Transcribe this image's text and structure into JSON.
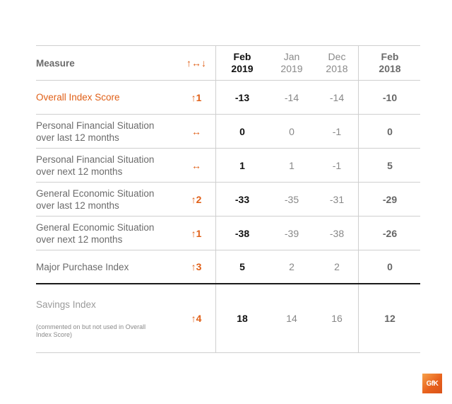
{
  "header": {
    "measure": "Measure",
    "change_symbol": "↑↔↓",
    "feb2019": [
      "Feb",
      "2019"
    ],
    "jan2019": [
      "Jan",
      "2019"
    ],
    "dec2018": [
      "Dec",
      "2018"
    ],
    "feb2018": [
      "Feb",
      "2018"
    ]
  },
  "rows": [
    {
      "measure": [
        "Overall Index Score"
      ],
      "change": "↑1",
      "feb2019": "-13",
      "jan2019": "-14",
      "dec2018": "-14",
      "feb2018": "-10"
    },
    {
      "measure": [
        "Personal Financial Situation",
        "over last 12 months"
      ],
      "change": "↔",
      "feb2019": "0",
      "jan2019": "0",
      "dec2018": "-1",
      "feb2018": "0"
    },
    {
      "measure": [
        "Personal Financial Situation",
        "over next 12 months"
      ],
      "change": "↔",
      "feb2019": "1",
      "jan2019": "1",
      "dec2018": "-1",
      "feb2018": "5"
    },
    {
      "measure": [
        "General Economic Situation",
        "over last 12 months"
      ],
      "change": "↑2",
      "feb2019": "-33",
      "jan2019": "-35",
      "dec2018": "-31",
      "feb2018": "-29"
    },
    {
      "measure": [
        "General Economic Situation",
        "over next 12 months"
      ],
      "change": "↑1",
      "feb2019": "-38",
      "jan2019": "-39",
      "dec2018": "-38",
      "feb2018": "-26"
    },
    {
      "measure": [
        "Major Purchase Index"
      ],
      "change": "↑3",
      "feb2019": "5",
      "jan2019": "2",
      "dec2018": "2",
      "feb2018": "0"
    }
  ],
  "savings": {
    "measure": "Savings Index",
    "note": [
      "(commented on but not used in Overall",
      "Index Score)"
    ],
    "change": "↑4",
    "feb2019": "18",
    "jan2019": "14",
    "dec2018": "16",
    "feb2018": "12"
  },
  "logo": "GfK",
  "colors": {
    "accent": "#e06018",
    "rule": "#cfcfcf",
    "thick_rule": "#1a1a1a"
  }
}
